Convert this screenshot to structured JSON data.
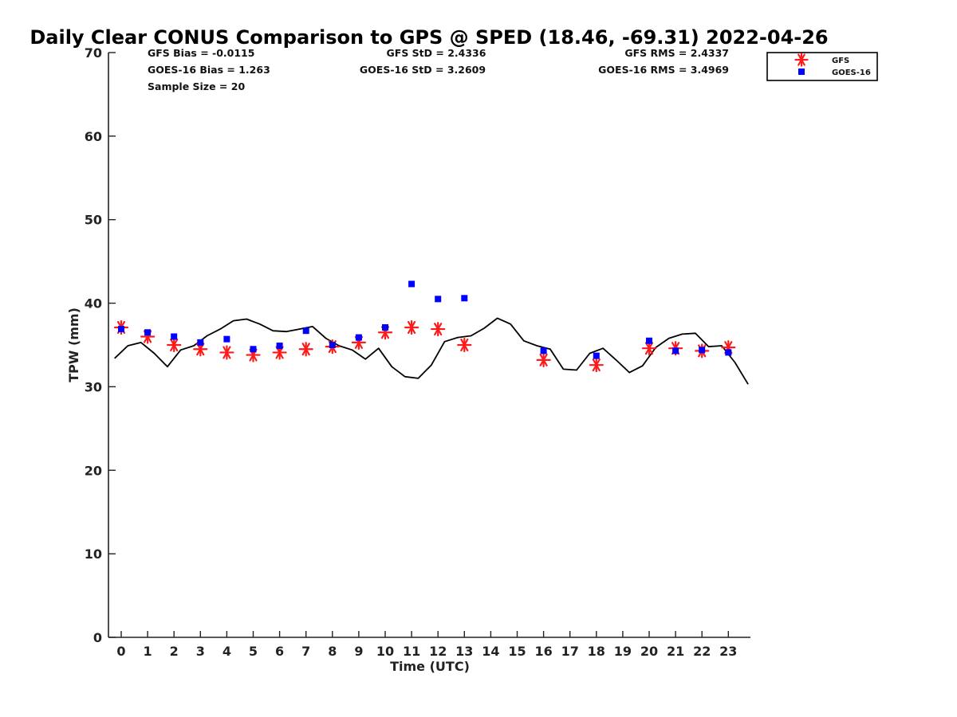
{
  "chart_data": {
    "type": "scatter",
    "title": "Daily Clear CONUS Comparison to GPS @ SPED (18.46, -69.31) 2022-04-26",
    "xlabel": "Time (UTC)",
    "ylabel": "TPW (mm)",
    "xlim": [
      -0.5,
      23.75
    ],
    "ylim": [
      0,
      70
    ],
    "x_ticks": [
      "0",
      "1",
      "2",
      "3",
      "4",
      "5",
      "6",
      "7",
      "8",
      "9",
      "10",
      "11",
      "12",
      "13",
      "14",
      "15",
      "16",
      "17",
      "18",
      "19",
      "20",
      "21",
      "22",
      "23"
    ],
    "y_ticks": [
      "0",
      "10",
      "20",
      "30",
      "40",
      "50",
      "60",
      "70"
    ],
    "grid": false,
    "legend_position": "top-right",
    "stats": {
      "gfs_bias": "GFS Bias = -0.0115",
      "goes_bias": "GOES-16 Bias = 1.263",
      "sample_size": "Sample Size = 20",
      "gfs_std": "GFS StD = 2.4336",
      "goes_std": "GOES-16 StD = 3.2609",
      "gfs_rms": "GFS RMS = 2.4337",
      "goes_rms": "GOES-16 RMS = 3.4969"
    },
    "series": [
      {
        "type": "line",
        "color": "#000000",
        "x": [
          -0.25,
          0.25,
          0.75,
          1.25,
          1.75,
          2.25,
          2.75,
          3.25,
          3.75,
          4.25,
          4.75,
          5.25,
          5.75,
          6.25,
          6.75,
          7.25,
          7.75,
          8.25,
          8.75,
          9.25,
          9.75,
          10.25,
          10.75,
          11.25,
          11.75,
          12.25,
          12.75,
          13.25,
          13.75,
          14.25,
          14.75,
          15.25,
          15.75,
          16.25,
          16.75,
          17.25,
          17.75,
          18.25,
          18.75,
          19.25,
          19.75,
          20.25,
          20.75,
          21.25,
          21.75,
          22.25,
          22.75,
          23.25,
          23.75
        ],
        "y": [
          33.4,
          34.9,
          35.3,
          34.0,
          32.4,
          34.4,
          34.9,
          36.1,
          36.9,
          37.9,
          38.1,
          37.5,
          36.7,
          36.6,
          36.9,
          37.2,
          35.8,
          34.9,
          34.4,
          33.3,
          34.6,
          32.4,
          31.2,
          31.0,
          32.6,
          35.4,
          35.9,
          36.1,
          37.0,
          38.2,
          37.5,
          35.5,
          34.9,
          34.5,
          32.1,
          32.0,
          34.0,
          34.6,
          33.2,
          31.7,
          32.5,
          34.7,
          35.8,
          36.3,
          36.4,
          34.8,
          34.9,
          32.9,
          30.3
        ]
      },
      {
        "name": "GFS",
        "type": "scatter",
        "marker": "asterisk",
        "color": "#ff1a1a",
        "x": [
          0,
          1,
          2,
          3,
          4,
          5,
          6,
          7,
          8,
          9,
          10,
          11,
          12,
          13,
          16,
          18,
          20,
          21,
          22,
          23
        ],
        "y": [
          37.1,
          36.0,
          35.0,
          34.5,
          34.1,
          33.8,
          34.1,
          34.5,
          34.8,
          35.3,
          36.5,
          37.1,
          36.9,
          35.0,
          33.2,
          32.6,
          34.6,
          34.6,
          34.3,
          34.7
        ]
      },
      {
        "name": "GOES-16",
        "type": "scatter",
        "marker": "square",
        "color": "#0000ff",
        "x": [
          0,
          1,
          2,
          3,
          4,
          5,
          6,
          7,
          8,
          9,
          10,
          11,
          12,
          13,
          16,
          18,
          20,
          21,
          22,
          23
        ],
        "y": [
          36.9,
          36.5,
          36.0,
          35.3,
          35.7,
          34.5,
          34.9,
          36.7,
          35.0,
          35.9,
          37.1,
          42.3,
          40.5,
          40.6,
          34.3,
          33.7,
          35.5,
          34.3,
          34.4,
          34.1
        ]
      }
    ]
  }
}
